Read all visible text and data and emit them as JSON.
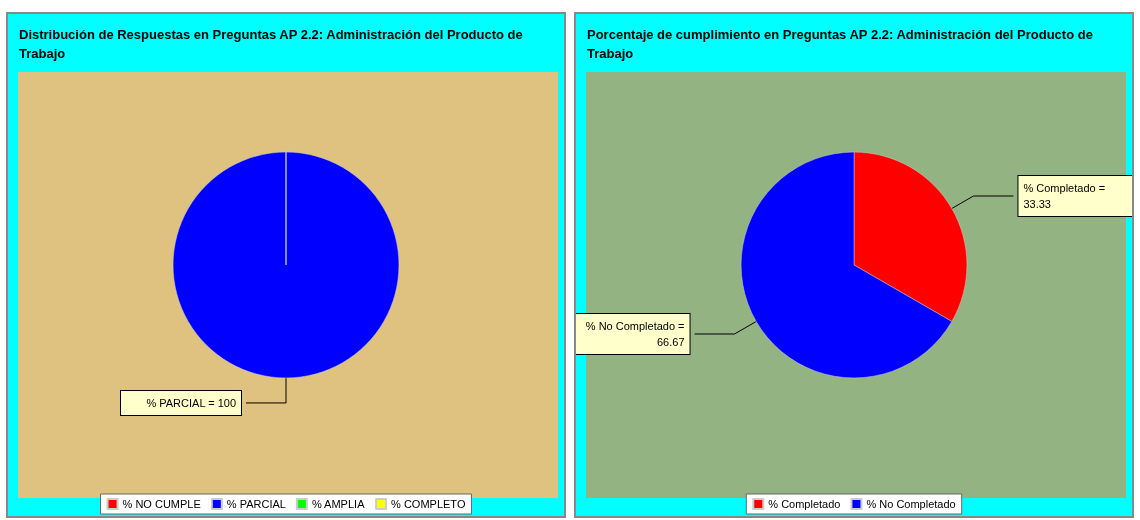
{
  "chart_data": [
    {
      "type": "pie",
      "title": "Distribución de Respuestas en Preguntas AP 2.2: Administración del Producto de Trabajo",
      "categories": [
        "% NO CUMPLE",
        "% PARCIAL",
        "% AMPLIA",
        "% COMPLETO"
      ],
      "values": [
        0,
        100,
        0,
        0
      ],
      "colors": [
        "#ff0000",
        "#0000ff",
        "#00ff00",
        "#ffff00"
      ],
      "value_labels": [
        null,
        "% PARCIAL = 100",
        null,
        null
      ],
      "legend": "bottom"
    },
    {
      "type": "pie",
      "title": "Porcentaje de cumplimiento en Preguntas AP 2.2: Administración del Producto de Trabajo",
      "categories": [
        "% Completado",
        "% No Completado"
      ],
      "values": [
        33.33,
        66.67
      ],
      "colors": [
        "#ff0000",
        "#0000ff"
      ],
      "value_labels": [
        "% Completado = 33.33",
        "% No Completado = 66.67"
      ],
      "legend": "bottom"
    }
  ]
}
